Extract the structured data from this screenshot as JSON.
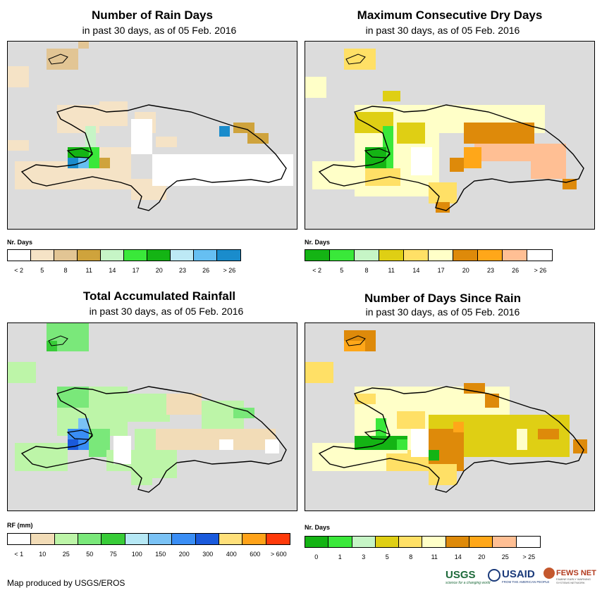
{
  "panels": [
    {
      "id": "rain-days",
      "title": "Number of Rain Days",
      "subtitle": "in past 30 days, as of 05 Feb. 2016",
      "unit_label": "Nr. Days",
      "legend_colors": [
        "#ffffff",
        "#f5e3c6",
        "#e2c594",
        "#cfa33c",
        "#c6f5c6",
        "#3ae83a",
        "#14b414",
        "#bde9f5",
        "#66bff2",
        "#1a8ccc"
      ],
      "legend_ticks": [
        "< 2",
        "5",
        "8",
        "11",
        "14",
        "17",
        "20",
        "23",
        "26",
        "> 26"
      ]
    },
    {
      "id": "dry-days",
      "title": "Maximum Consecutive Dry Days",
      "subtitle": "in past 30 days, as of 05 Feb. 2016",
      "unit_label": "Nr. Days",
      "legend_colors": [
        "#14b414",
        "#3ae83a",
        "#c6f5c6",
        "#dfcf14",
        "#ffe066",
        "#ffffc8",
        "#de8a0a",
        "#ffa719",
        "#ffbf94",
        "#ffffff"
      ],
      "legend_ticks": [
        "< 2",
        "5",
        "8",
        "11",
        "14",
        "17",
        "20",
        "23",
        "26",
        "> 26"
      ]
    },
    {
      "id": "rainfall",
      "title": "Total Accumulated Rainfall",
      "subtitle": "in past 30 days, as of 05 Feb. 2016",
      "unit_label": "RF (mm)",
      "legend_colors": [
        "#ffffff",
        "#f2dcb7",
        "#bdf5a8",
        "#7ae87a",
        "#38cc38",
        "#b6e8f5",
        "#7ac2f5",
        "#3a8ef5",
        "#1a5adc",
        "#ffe07a",
        "#ffa319",
        "#ff3a0a"
      ],
      "legend_ticks": [
        "< 1",
        "10",
        "25",
        "50",
        "75",
        "100",
        "150",
        "200",
        "300",
        "400",
        "600",
        "> 600"
      ]
    },
    {
      "id": "since-rain",
      "title": "Number of Days Since Rain",
      "subtitle": "in past 30 days, as of 05 Feb. 2016",
      "unit_label": "Nr. Days",
      "legend_colors": [
        "#14b414",
        "#3ae83a",
        "#c6f5c6",
        "#dfcf14",
        "#ffe066",
        "#ffffc8",
        "#de8a0a",
        "#ffa719",
        "#ffbf94",
        "#ffffff"
      ],
      "legend_ticks": [
        "0",
        "1",
        "3",
        "5",
        "8",
        "11",
        "14",
        "20",
        "25",
        "> 25"
      ]
    }
  ],
  "footer": {
    "credit": "Map produced by USGS/EROS",
    "usgs": "USGS",
    "usgs_tag": "science for a changing world",
    "usaid": "USAID",
    "usaid_tag": "FROM THE AMERICAN PEOPLE",
    "fews": "FEWS NET",
    "fews_tag": "FAMINE EARLY WARNING SYSTEMS NETWORK"
  }
}
